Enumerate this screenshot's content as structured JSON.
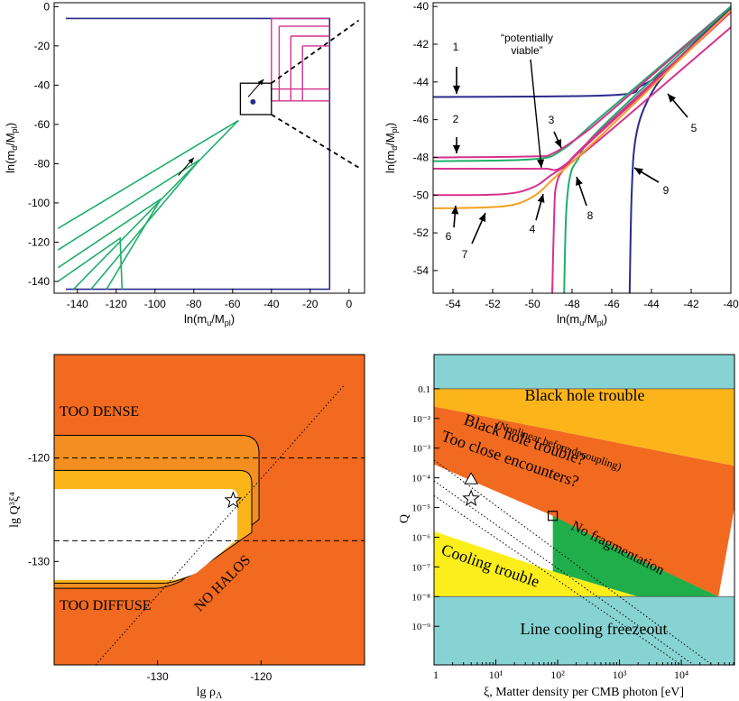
{
  "chart_data": [
    {
      "type": "line",
      "xlabel": "ln(m_u/M_pl)",
      "ylabel": "ln(m_d/M_pl)",
      "xlim": [
        -152,
        8
      ],
      "ylim": [
        -146,
        2
      ],
      "xticks": [
        "-140",
        "-120",
        "-100",
        "-80",
        "-60",
        "-40",
        "-20",
        "0"
      ],
      "xtick_values": [
        -140,
        -120,
        -100,
        -80,
        -60,
        -40,
        -20,
        0
      ],
      "yticks": [
        "0",
        "-20",
        "-40",
        "-60",
        "-80",
        "-100",
        "-120",
        "-140"
      ],
      "ytick_values": [
        0,
        -20,
        -40,
        -60,
        -80,
        -100,
        -120,
        -140
      ],
      "colors": {
        "blue": "#2a2a8c",
        "magenta": "#d6328f",
        "green": "#1fae6b"
      },
      "blue_box": {
        "x": [
          -146,
          -10
        ],
        "y": [
          -144,
          -6
        ]
      },
      "magenta_corners": [
        {
          "corner": [
            -40,
            -6
          ],
          "hstart": -40,
          "vstart": -6
        },
        {
          "corner": [
            -36,
            -10
          ],
          "hstart": -36,
          "vstart": -10
        },
        {
          "corner": [
            -30,
            -15
          ],
          "hstart": -30,
          "vstart": -15
        },
        {
          "corner": [
            -24,
            -20
          ],
          "hstart": -24,
          "vstart": -20
        }
      ],
      "magenta_h_lines_y": [
        -48,
        -42
      ],
      "zoom_box": {
        "x": [
          -56,
          -40
        ],
        "y": [
          -55,
          -39
        ]
      },
      "dot": {
        "x": -49.5,
        "y": -48.5
      },
      "dashed_lines": [
        [
          [
            -40,
            -39
          ],
          [
            5,
            -7
          ]
        ],
        [
          [
            -40,
            -55
          ],
          [
            5,
            -82
          ]
        ]
      ],
      "green_wedges": [
        {
          "tip": [
            -57,
            -58
          ],
          "ends": [
            [
              -150,
              -113
            ],
            [
              -142,
              -144
            ]
          ]
        },
        {
          "tip": [
            -77,
            -78
          ],
          "ends": [
            [
              -150,
              -124
            ],
            [
              -133,
              -144
            ]
          ]
        },
        {
          "tip": [
            -97,
            -98
          ],
          "ends": [
            [
              -150,
              -133
            ],
            [
              -125,
              -144
            ]
          ]
        },
        {
          "tip": [
            -118,
            -118
          ],
          "ends": [
            [
              -150,
              -140
            ],
            [
              -117,
              -144
            ]
          ]
        }
      ],
      "arrows": [
        [
          [
            -88,
            -86
          ],
          [
            -80,
            -77
          ]
        ],
        [
          [
            -52,
            -46
          ],
          [
            -44,
            -37
          ]
        ]
      ]
    },
    {
      "type": "line",
      "xlabel": "ln(m_u/M_pl)",
      "ylabel": "ln(m_d/M_pl)",
      "xlim": [
        -55,
        -40
      ],
      "ylim": [
        -55.2,
        -39.8
      ],
      "xticks": [
        "-54",
        "-52",
        "-50",
        "-48",
        "-46",
        "-44",
        "-42",
        "-40"
      ],
      "xtick_values": [
        -54,
        -52,
        -50,
        -48,
        -46,
        -44,
        -42,
        -40
      ],
      "yticks": [
        "-40",
        "-42",
        "-44",
        "-46",
        "-48",
        "-50",
        "-52",
        "-54"
      ],
      "ytick_values": [
        -40,
        -42,
        -44,
        -46,
        -48,
        -50,
        -52,
        -54
      ],
      "annotation": "“potentially\nviable”",
      "curve_labels": [
        "1",
        "2",
        "3",
        "4",
        "5",
        "6",
        "7",
        "8",
        "9"
      ],
      "curves": [
        {
          "color": "#2a2a8c",
          "points": [
            [
              -55,
              -44.8
            ],
            [
              -46,
              -44.7
            ],
            [
              -44.5,
              -44.2
            ],
            [
              -43,
              -43.1
            ],
            [
              -40,
              -40
            ]
          ]
        },
        {
          "color": "#2a2a8c",
          "points": [
            [
              -45.1,
              -55.2
            ],
            [
              -45,
              -50
            ],
            [
              -44.8,
              -47
            ],
            [
              -44.2,
              -45
            ],
            [
              -43,
              -43.2
            ],
            [
              -40,
              -40.1
            ]
          ]
        },
        {
          "color": "#1fae6b",
          "points": [
            [
              -55,
              -48.2
            ],
            [
              -50,
              -48.1
            ],
            [
              -48.5,
              -47.6
            ],
            [
              -46.5,
              -45.8
            ],
            [
              -40,
              -40
            ]
          ]
        },
        {
          "color": "#d6328f",
          "points": [
            [
              -55,
              -48.0
            ],
            [
              -50,
              -47.95
            ],
            [
              -49,
              -47.8
            ],
            [
              -47.5,
              -46.8
            ],
            [
              -46,
              -45.5
            ],
            [
              -40,
              -40
            ]
          ]
        },
        {
          "color": "#1fae6b",
          "points": [
            [
              -48.4,
              -55.2
            ],
            [
              -48.3,
              -51
            ],
            [
              -48.1,
              -49
            ],
            [
              -47.7,
              -48.1
            ],
            [
              -46.5,
              -46.4
            ],
            [
              -40,
              -40
            ]
          ]
        },
        {
          "color": "#d6328f",
          "points": [
            [
              -49,
              -55.2
            ],
            [
              -48.9,
              -51
            ],
            [
              -48.8,
              -49.5
            ],
            [
              -48.4,
              -48.6
            ],
            [
              -47,
              -47
            ],
            [
              -40,
              -40.2
            ]
          ]
        },
        {
          "color": "#d6328f",
          "points": [
            [
              -55,
              -48.6
            ],
            [
              -50.5,
              -48.6
            ],
            [
              -49.3,
              -48.6
            ],
            [
              -48.5,
              -48.5
            ],
            [
              -46.5,
              -46.6
            ],
            [
              -40,
              -40.3
            ]
          ]
        },
        {
          "color": "#d6328f",
          "points": [
            [
              -55,
              -50.0
            ],
            [
              -51.5,
              -49.95
            ],
            [
              -50,
              -49.6
            ],
            [
              -49,
              -48.9
            ],
            [
              -47,
              -47.4
            ],
            [
              -40,
              -41.1
            ]
          ]
        },
        {
          "color": "#f6a020",
          "points": [
            [
              -55,
              -50.7
            ],
            [
              -51.5,
              -50.6
            ],
            [
              -50,
              -50.1
            ],
            [
              -48.8,
              -49.0
            ],
            [
              -46.5,
              -46.8
            ],
            [
              -40,
              -40.2
            ]
          ]
        }
      ]
    },
    {
      "type": "area",
      "xlabel": "lg ρ_Λ",
      "ylabel": "lg Q³ξ⁴",
      "xlim": [
        -140,
        -110
      ],
      "ylim": [
        -140,
        -110
      ],
      "xticks": [
        "-130",
        "-120"
      ],
      "xtick_values": [
        -130,
        -120
      ],
      "yticks": [
        "-120",
        "-130"
      ],
      "ytick_values": [
        -120,
        -130
      ],
      "colors": {
        "background": "#f26a1f",
        "band_outer": "#f48e20",
        "band_inner": "#fbb41a",
        "white": "#ffffff"
      },
      "labels": [
        "TOO DENSE",
        "TOO DIFFUSE",
        "NO HALOS"
      ],
      "dashed_y": [
        -120,
        -128
      ],
      "dotted_line": [
        [
          -136,
          -140
        ],
        [
          -112,
          -113
        ]
      ],
      "star": {
        "x": -122.7,
        "y": -124.1
      },
      "white_region": {
        "top": -123,
        "bottom": -131.8,
        "right_top_x": -122.3,
        "cut_x": -127.8
      },
      "band_inner_top": -121.2,
      "band_outer_top": -117.8
    },
    {
      "type": "area",
      "xlabel": "ξ, Matter density per CMB photon [eV]",
      "ylabel": "Q",
      "xlog": true,
      "ylog": true,
      "xlim_log10": [
        0,
        4.86
      ],
      "ylim_log10": [
        -10.3,
        0.15
      ],
      "xticks": [
        "1",
        "10¹",
        "10²",
        "10³",
        "10⁴"
      ],
      "xtick_values_log10": [
        0,
        1,
        2,
        3,
        4
      ],
      "yticks": [
        "0.1",
        "10⁻²",
        "10⁻³",
        "10⁻⁴",
        "10⁻⁵",
        "10⁻⁶",
        "10⁻⁷",
        "10⁻⁸",
        "10⁻⁹"
      ],
      "ytick_values_log10": [
        -1,
        -2,
        -3,
        -4,
        -5,
        -6,
        -7,
        -8,
        -9
      ],
      "colors": {
        "cyan": "#87d3d3",
        "light_orange": "#fbb41a",
        "orange": "#f26a1f",
        "white": "#ffffff",
        "yellow": "#fbee1a",
        "green": "#1fae4a"
      },
      "regions": [
        "Black hole trouble",
        "Black hole trouble?",
        "(Nonlinear before decoupling)",
        "Too close encounters?",
        "No fragmentation",
        "Cooling trouble",
        "Line cooling freezeout"
      ],
      "triangle": {
        "x_log10": 0.6,
        "y_log10": -4.05
      },
      "star": {
        "x_log10": 0.6,
        "y_log10": -4.7
      },
      "square": {
        "x_log10": 1.92,
        "y_log10": -5.28
      }
    }
  ]
}
